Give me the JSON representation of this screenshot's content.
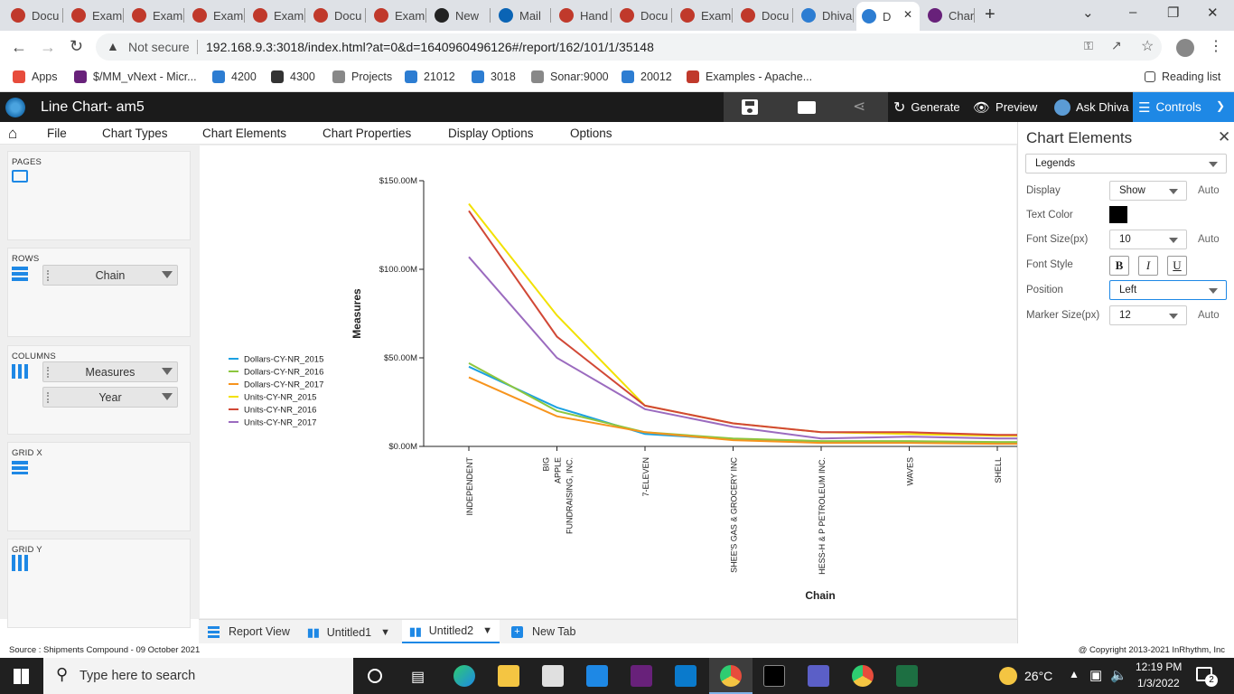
{
  "browser": {
    "tabs": [
      {
        "label": "Docu",
        "icon": "opera-icon",
        "color": "#c0392b",
        "active": false
      },
      {
        "label": "Exam",
        "icon": "opera-icon",
        "color": "#c0392b",
        "active": false
      },
      {
        "label": "Exam",
        "icon": "opera-icon",
        "color": "#c0392b",
        "active": false
      },
      {
        "label": "Exam",
        "icon": "opera-icon",
        "color": "#c0392b",
        "active": false
      },
      {
        "label": "Exam",
        "icon": "opera-icon",
        "color": "#c0392b",
        "active": false
      },
      {
        "label": "Docu",
        "icon": "opera-icon",
        "color": "#c0392b",
        "active": false
      },
      {
        "label": "Exam",
        "icon": "opera-icon",
        "color": "#c0392b",
        "active": false
      },
      {
        "label": "New",
        "icon": "github-icon",
        "color": "#222222",
        "active": false
      },
      {
        "label": "Mail",
        "icon": "outlook-icon",
        "color": "#0a64b5",
        "active": false
      },
      {
        "label": "Hand",
        "icon": "opera-icon",
        "color": "#c0392b",
        "active": false
      },
      {
        "label": "Docu",
        "icon": "opera-icon",
        "color": "#c0392b",
        "active": false
      },
      {
        "label": "Exam",
        "icon": "opera-icon",
        "color": "#c0392b",
        "active": false
      },
      {
        "label": "Docu",
        "icon": "opera-icon",
        "color": "#c0392b",
        "active": false
      },
      {
        "label": "Dhiva",
        "icon": "dhiva-icon",
        "color": "#2d7dd2",
        "active": false
      },
      {
        "label": "D",
        "icon": "dhiva-icon",
        "color": "#2d7dd2",
        "active": true
      },
      {
        "label": "Chan",
        "icon": "visualstudio-icon",
        "color": "#68217a",
        "active": false
      }
    ],
    "new_tab": "+",
    "address": {
      "security": "Not secure",
      "url": "192.168.9.3:3018/index.html?at=0&d=1640960496126#/report/162/101/1/35148"
    },
    "bookmarks": [
      {
        "label": "Apps",
        "color": "#e74c3c"
      },
      {
        "label": "$/MM_vNext - Micr...",
        "color": "#68217a"
      },
      {
        "label": "4200",
        "color": "#2d7dd2"
      },
      {
        "label": "4300",
        "color": "#333333"
      },
      {
        "label": "Projects",
        "color": "#888888"
      },
      {
        "label": "21012",
        "color": "#2d7dd2"
      },
      {
        "label": "3018",
        "color": "#2d7dd2"
      },
      {
        "label": "Sonar:9000",
        "color": "#888888"
      },
      {
        "label": "20012",
        "color": "#2d7dd2"
      },
      {
        "label": "Examples - Apache...",
        "color": "#c0392b"
      }
    ],
    "reading_list": "Reading list"
  },
  "app": {
    "title": "Line Chart- am5",
    "actions": {
      "generate": "Generate",
      "preview": "Preview",
      "ask": "Ask Dhiva",
      "controls": "Controls"
    },
    "menu": [
      "File",
      "Chart Types",
      "Chart Elements",
      "Chart Properties",
      "Display Options",
      "Options"
    ]
  },
  "left_panel": {
    "pages_label": "PAGES",
    "rows_label": "ROWS",
    "rows_items": [
      "Chain"
    ],
    "columns_label": "COLUMNS",
    "columns_items": [
      "Measures",
      "Year"
    ],
    "gridx_label": "GRID X",
    "gridy_label": "GRID Y"
  },
  "right_panel": {
    "title": "Chart Elements",
    "element_select": "Legends",
    "display_label": "Display",
    "display_value": "Show",
    "auto": "Auto",
    "text_color_label": "Text Color",
    "text_color": "#000000",
    "font_size_label": "Font Size(px)",
    "font_size_value": "10",
    "font_style_label": "Font Style",
    "bold": "B",
    "italic": "I",
    "underline": "U",
    "position_label": "Position",
    "position_value": "Left",
    "marker_size_label": "Marker Size(px)",
    "marker_size_value": "12"
  },
  "bottom_tabs": {
    "report_view": "Report View",
    "tab1": "Untitled1",
    "tab2": "Untitled2",
    "new_tab": "New Tab"
  },
  "footer": {
    "source": "Source : Shipments Compound - 09 October 2021",
    "copyright": "@ Copyright 2013-2021 InRhythm, Inc"
  },
  "taskbar": {
    "search_placeholder": "Type here to search",
    "weather": "26°C",
    "time": "12:19 PM",
    "date": "1/3/2022",
    "notifications": "2"
  },
  "chart_data": {
    "type": "line",
    "xlabel": "Chain",
    "ylabel": "Measures",
    "ylim": [
      0,
      150000000
    ],
    "yticks": [
      "$0.00M",
      "$50.00M",
      "$100.00M",
      "$150.00M"
    ],
    "categories": [
      "INDEPENDENT",
      "BIG APPLE FUNDRAISING, INC.",
      "7-ELEVEN",
      "SHEE'S GAS & GROCERY INC",
      "HESS-H & P PETROLEUM INC.",
      "WAVES",
      "SHELL"
    ],
    "legend_position": "left",
    "series": [
      {
        "name": "Dollars-CY-NR_2015",
        "color": "#1ba1e2",
        "values": [
          45000000,
          22000000,
          7000000,
          4000000,
          2500000,
          2500000,
          2000000
        ]
      },
      {
        "name": "Dollars-CY-NR_2016",
        "color": "#8cc63f",
        "values": [
          47000000,
          20000000,
          8000000,
          4500000,
          3000000,
          3000000,
          2500000
        ]
      },
      {
        "name": "Dollars-CY-NR_2017",
        "color": "#f7941d",
        "values": [
          39000000,
          17000000,
          8000000,
          3500000,
          2000000,
          2000000,
          1500000
        ]
      },
      {
        "name": "Units-CY-NR_2015",
        "color": "#f2e100",
        "values": [
          137000000,
          74000000,
          23000000,
          13000000,
          8000000,
          7000000,
          6000000
        ]
      },
      {
        "name": "Units-CY-NR_2016",
        "color": "#d14836",
        "values": [
          133000000,
          62000000,
          23000000,
          13000000,
          8000000,
          8000000,
          6500000
        ]
      },
      {
        "name": "Units-CY-NR_2017",
        "color": "#9b6bbf",
        "values": [
          107000000,
          50000000,
          21000000,
          11000000,
          4500000,
          5500000,
          4500000
        ]
      }
    ]
  }
}
